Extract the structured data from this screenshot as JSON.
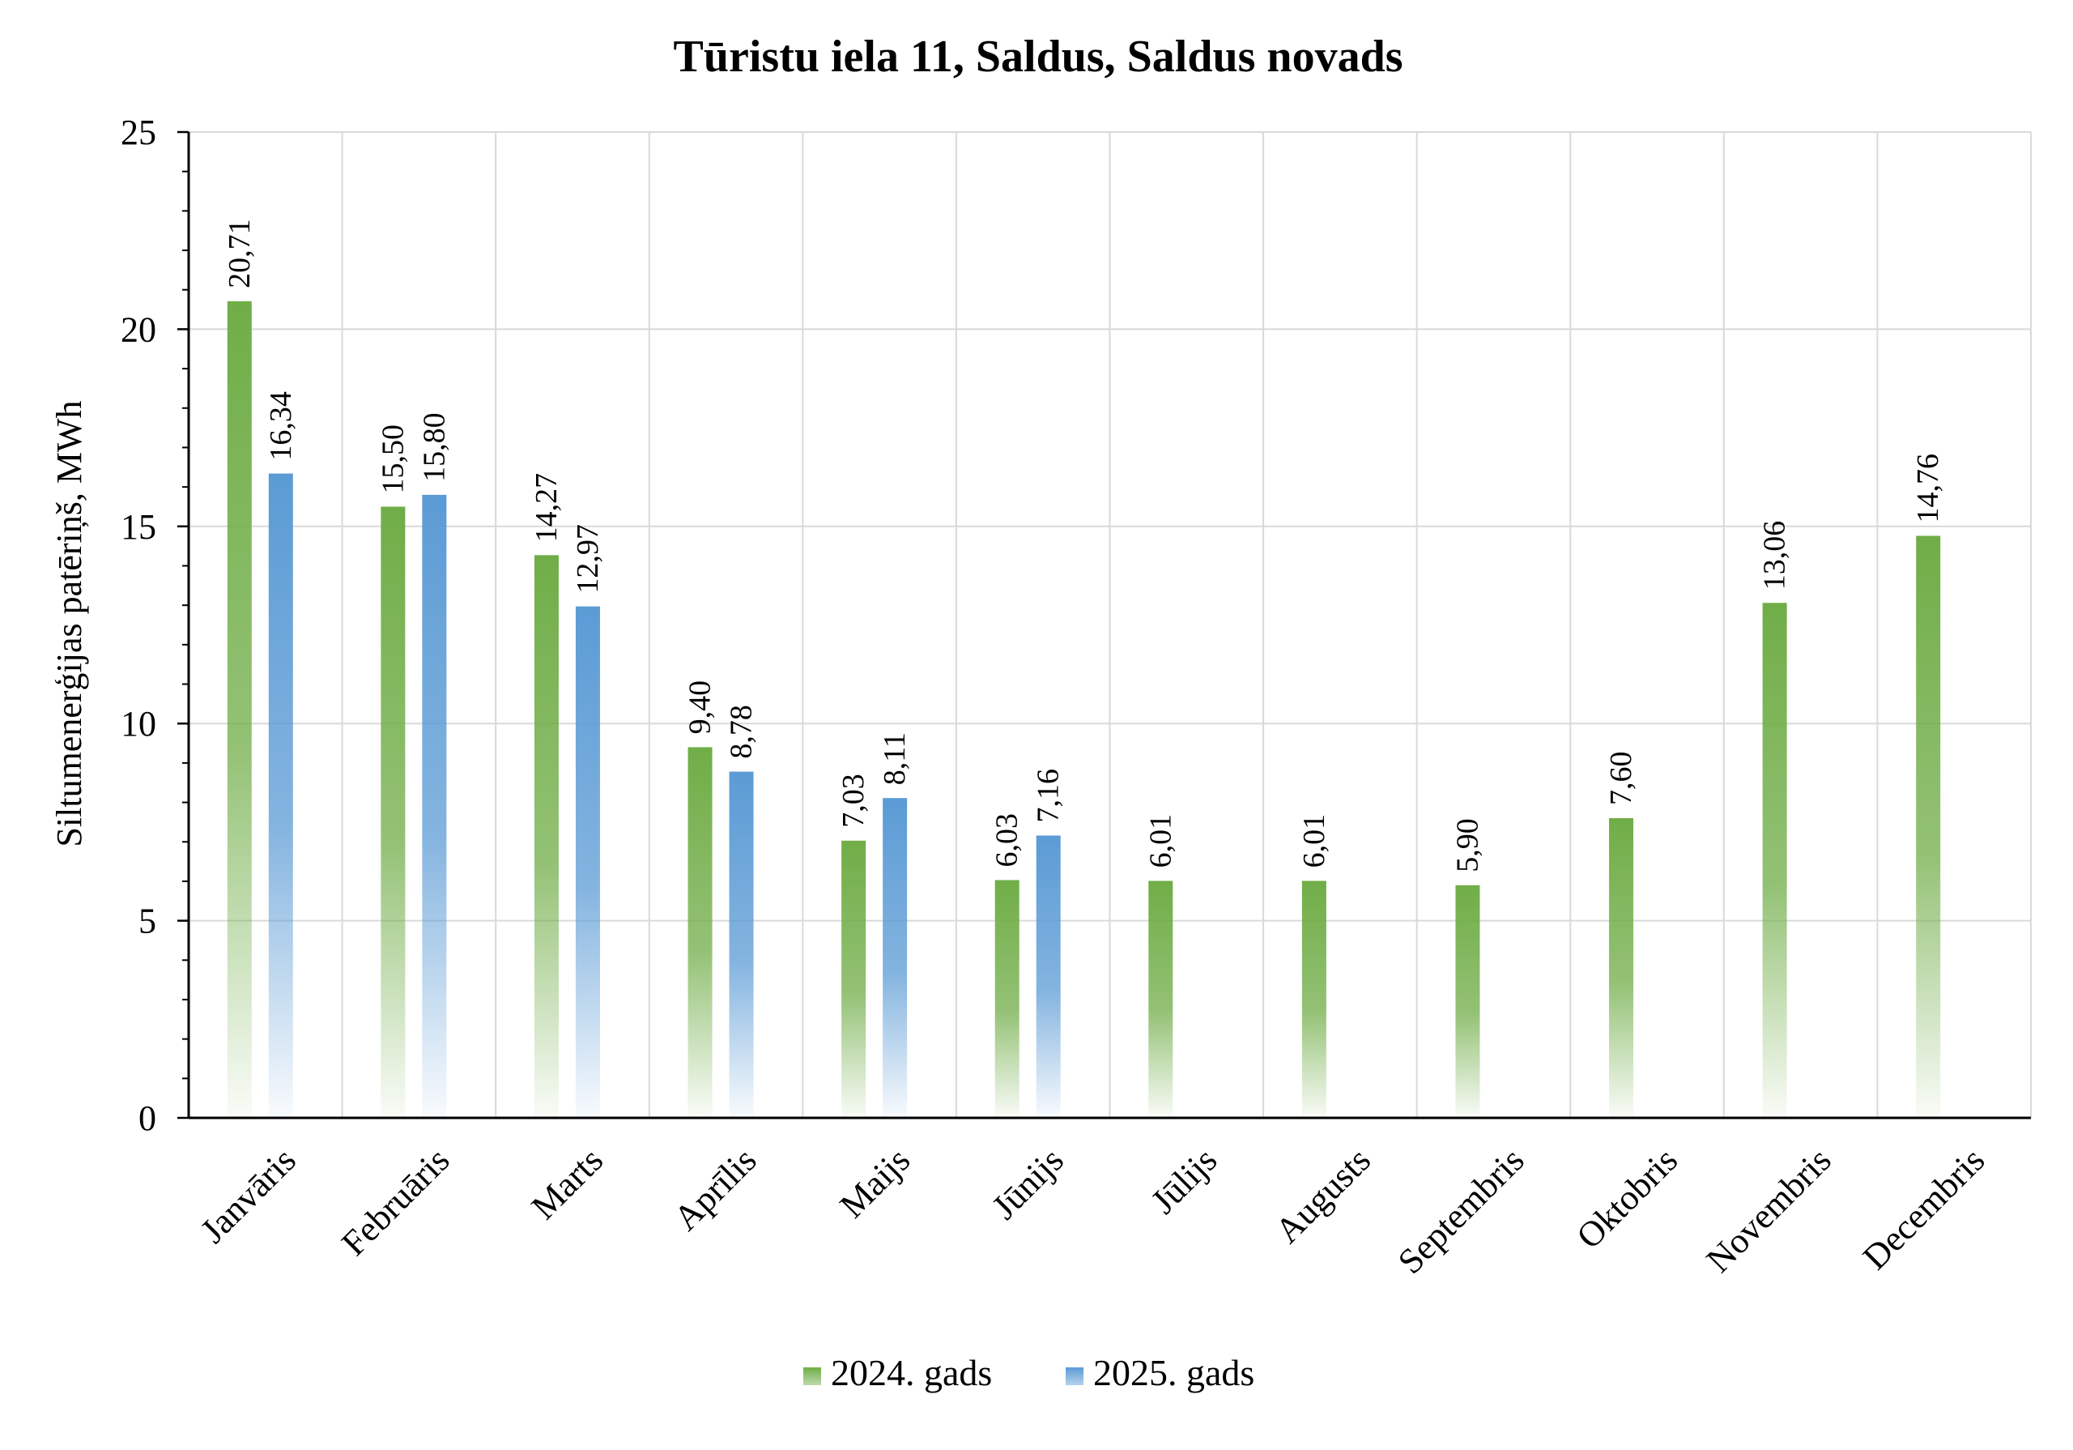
{
  "chart_data": {
    "type": "bar",
    "title": "Tūristu iela 11, Saldus, Saldus novads",
    "xlabel": "",
    "ylabel": "Siltumenerģijas patēriņš, MWh",
    "ylim": [
      0,
      25
    ],
    "yticks": [
      0,
      5,
      10,
      15,
      20,
      25
    ],
    "grid": true,
    "legend_position": "bottom",
    "categories": [
      "Janvāris",
      "Februāris",
      "Marts",
      "Aprīlis",
      "Maijs",
      "Jūnijs",
      "Jūlijs",
      "Augusts",
      "Septembris",
      "Oktobris",
      "Novembris",
      "Decembris"
    ],
    "series": [
      {
        "name": "2024. gads",
        "color": "#70ad47",
        "values": [
          20.71,
          15.5,
          14.27,
          9.4,
          7.03,
          6.03,
          6.01,
          6.01,
          5.9,
          7.6,
          13.06,
          14.76
        ],
        "labels": [
          "20,71",
          "15,50",
          "14,27",
          "9,40",
          "7,03",
          "6,03",
          "6,01",
          "6,01",
          "5,90",
          "7,60",
          "13,06",
          "14,76"
        ]
      },
      {
        "name": "2025. gads",
        "color": "#5b9bd5",
        "values": [
          16.34,
          15.8,
          12.97,
          8.78,
          8.11,
          7.16,
          null,
          null,
          null,
          null,
          null,
          null
        ],
        "labels": [
          "16,34",
          "15,80",
          "12,97",
          "8,78",
          "8,11",
          "7,16",
          "",
          "",
          "",
          "",
          "",
          ""
        ]
      }
    ]
  }
}
